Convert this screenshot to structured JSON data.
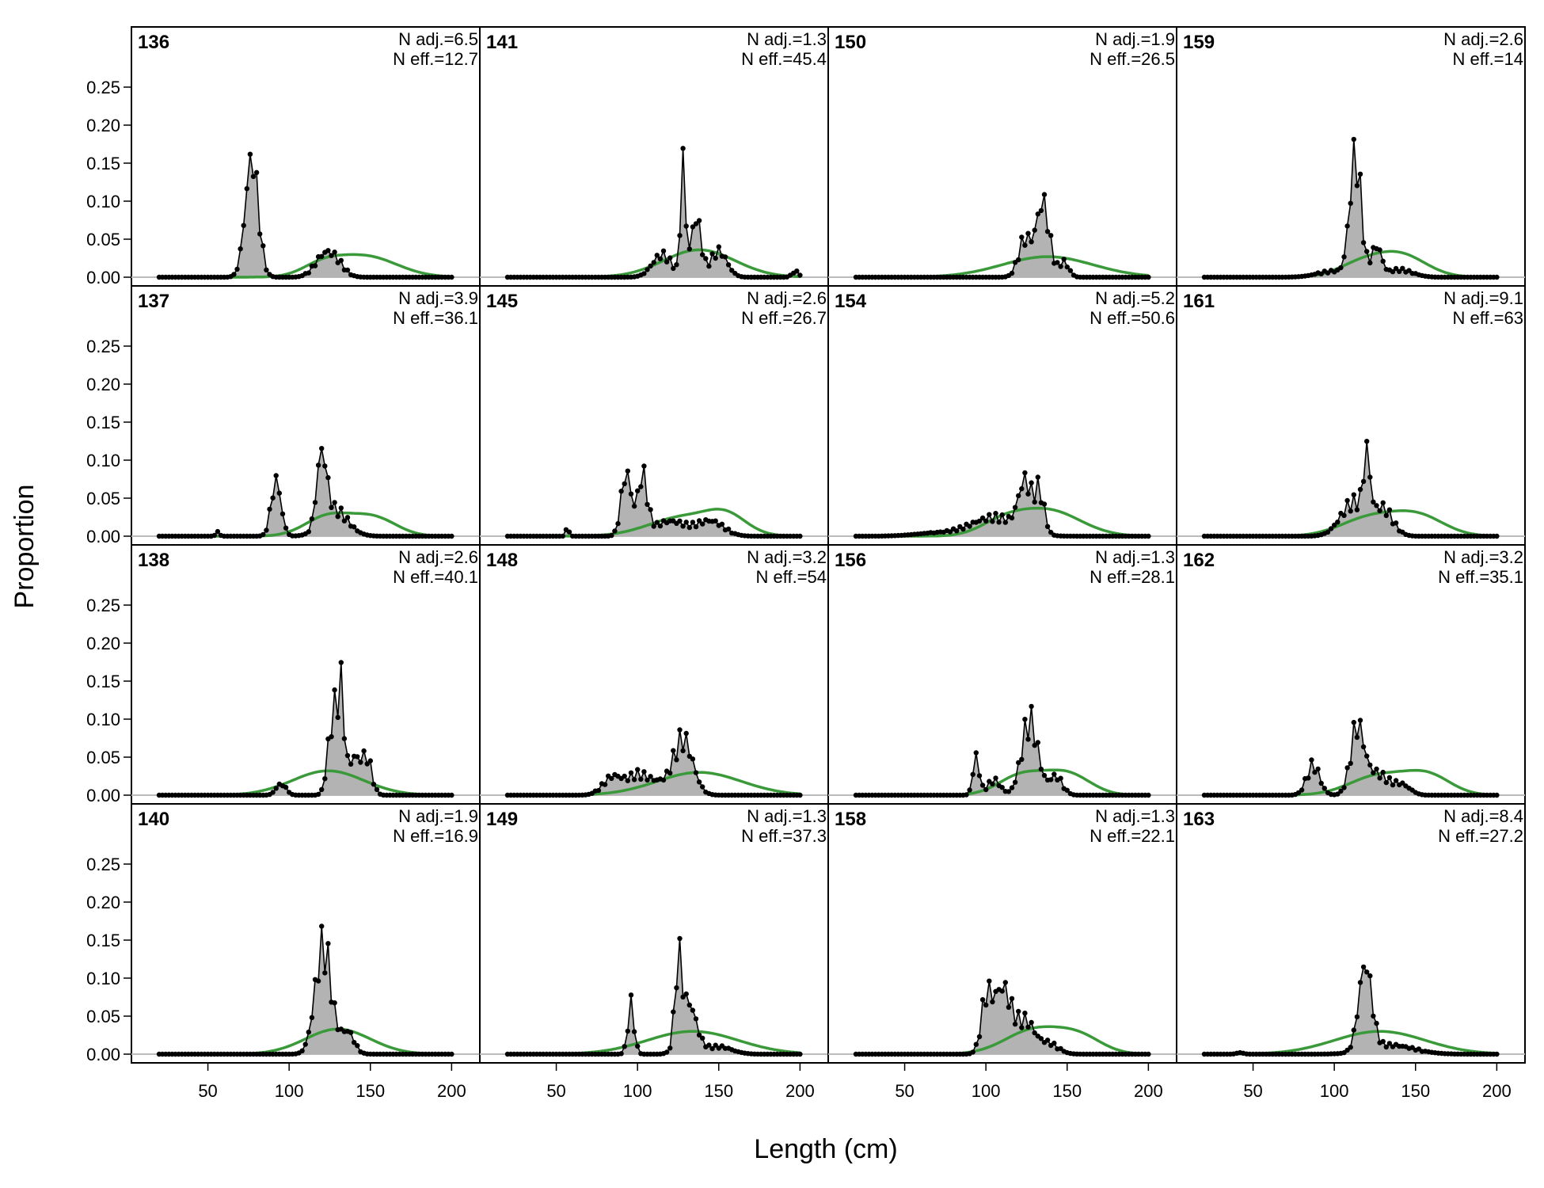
{
  "chart_data": {
    "type": "area",
    "xlabel": "Length (cm)",
    "ylabel": "Proportion",
    "xlim": [
      20,
      200
    ],
    "ylim": [
      0,
      0.25
    ],
    "x_ticks": [
      "50",
      "100",
      "150",
      "200"
    ],
    "y_ticks": [
      "0.00",
      "0.05",
      "0.10",
      "0.15",
      "0.20",
      "0.25"
    ],
    "observed_color": "#000000",
    "observed_fill": "#b3b3b3",
    "expected_color": "#3a9a3a",
    "baseline_color": "#bbbbbb",
    "columns": [
      [
        {
          "id": "136",
          "n_adj": "N adj.=6.5",
          "n_eff": "N eff.=12.7",
          "peaks": [
            [
              77,
              0.16,
              4
            ],
            [
              122,
              0.03,
              6
            ],
            [
              130,
              0.012,
              5
            ]
          ],
          "expected": [
            [
              146,
              0.028,
              20
            ],
            [
              120,
              0.012,
              12
            ]
          ]
        },
        {
          "id": "137",
          "n_adj": "N adj.=3.9",
          "n_eff": "N eff.=36.1",
          "peaks": [
            [
              92,
              0.075,
              3
            ],
            [
              120,
              0.095,
              3
            ],
            [
              128,
              0.035,
              8
            ],
            [
              56,
              0.008,
              1
            ]
          ],
          "expected": [
            [
              124,
              0.026,
              14
            ],
            [
              152,
              0.024,
              14
            ]
          ]
        },
        {
          "id": "138",
          "n_adj": "N adj.=2.6",
          "n_eff": "N eff.=40.1",
          "peaks": [
            [
              127,
              0.105,
              3
            ],
            [
              132,
              0.115,
              2
            ],
            [
              140,
              0.05,
              4
            ],
            [
              148,
              0.045,
              3
            ],
            [
              95,
              0.015,
              3
            ]
          ],
          "expected": [
            [
              124,
              0.032,
              22
            ]
          ]
        },
        {
          "id": "140",
          "n_adj": "N adj.=1.9",
          "n_eff": "N eff.=16.9",
          "peaks": [
            [
              121,
              0.145,
              5
            ],
            [
              136,
              0.03,
              4
            ]
          ],
          "expected": [
            [
              130,
              0.033,
              20
            ]
          ]
        }
      ],
      [
        {
          "id": "141",
          "n_adj": "N adj.=1.3",
          "n_eff": "N eff.=45.4",
          "peaks": [
            [
              128,
              0.15,
              1.5
            ],
            [
              136,
              0.08,
              3
            ],
            [
              115,
              0.03,
              6
            ],
            [
              150,
              0.035,
              5
            ],
            [
              197,
              0.008,
              2
            ]
          ],
          "expected": [
            [
              138,
              0.036,
              22
            ]
          ]
        },
        {
          "id": "145",
          "n_adj": "N adj.=2.6",
          "n_eff": "N eff.=26.7",
          "peaks": [
            [
              93,
              0.085,
              3
            ],
            [
              103,
              0.078,
              3
            ],
            [
              120,
              0.02,
              10
            ],
            [
              145,
              0.02,
              8
            ],
            [
              57,
              0.012,
              1
            ]
          ],
          "expected": [
            [
              130,
              0.026,
              22
            ],
            [
              155,
              0.02,
              12
            ]
          ]
        },
        {
          "id": "148",
          "n_adj": "N adj.=3.2",
          "n_eff": "N eff.=54",
          "peaks": [
            [
              128,
              0.075,
              6
            ],
            [
              85,
              0.025,
              6
            ],
            [
              100,
              0.025,
              6
            ],
            [
              112,
              0.015,
              6
            ]
          ],
          "expected": [
            [
              138,
              0.03,
              26
            ]
          ]
        },
        {
          "id": "149",
          "n_adj": "N adj.=1.3",
          "n_eff": "N eff.=37.3",
          "peaks": [
            [
              125,
              0.1,
              2
            ],
            [
              131,
              0.07,
              5
            ],
            [
              96,
              0.065,
              2
            ],
            [
              150,
              0.01,
              8
            ]
          ],
          "expected": [
            [
              134,
              0.03,
              28
            ]
          ]
        }
      ],
      [
        {
          "id": "150",
          "n_adj": "N adj.=1.9",
          "n_eff": "N eff.=26.5",
          "peaks": [
            [
              135,
              0.1,
              4
            ],
            [
              124,
              0.05,
              4
            ],
            [
              148,
              0.02,
              3
            ]
          ],
          "expected": [
            [
              138,
              0.027,
              28
            ]
          ]
        },
        {
          "id": "154",
          "n_adj": "N adj.=5.2",
          "n_eff": "N eff.=50.6",
          "peaks": [
            [
              124,
              0.065,
              4
            ],
            [
              133,
              0.055,
              3
            ],
            [
              105,
              0.025,
              14
            ],
            [
              70,
              0.004,
              14
            ]
          ],
          "expected": [
            [
              138,
              0.034,
              20
            ],
            [
              110,
              0.015,
              14
            ]
          ]
        },
        {
          "id": "156",
          "n_adj": "N adj.=1.3",
          "n_eff": "N eff.=28.1",
          "peaks": [
            [
              127,
              0.1,
              5
            ],
            [
              94,
              0.05,
              2
            ],
            [
              143,
              0.025,
              4
            ],
            [
              105,
              0.02,
              4
            ]
          ],
          "expected": [
            [
              122,
              0.026,
              14
            ],
            [
              150,
              0.028,
              14
            ]
          ]
        },
        {
          "id": "158",
          "n_adj": "N adj.=1.3",
          "n_eff": "N eff.=22.1",
          "peaks": [
            [
              110,
              0.09,
              6
            ],
            [
              100,
              0.06,
              3
            ],
            [
              125,
              0.04,
              5
            ],
            [
              138,
              0.015,
              6
            ]
          ],
          "expected": [
            [
              130,
              0.032,
              18
            ],
            [
              158,
              0.02,
              14
            ]
          ]
        }
      ],
      [
        {
          "id": "159",
          "n_adj": "N adj.=2.6",
          "n_eff": "N eff.=14",
          "peaks": [
            [
              113,
              0.16,
              3.5
            ],
            [
              126,
              0.04,
              3
            ],
            [
              100,
              0.008,
              10
            ],
            [
              140,
              0.01,
              8
            ]
          ],
          "expected": [
            [
              140,
              0.03,
              16
            ],
            [
              115,
              0.015,
              14
            ]
          ]
        },
        {
          "id": "161",
          "n_adj": "N adj.=9.1",
          "n_eff": "N eff.=63",
          "peaks": [
            [
              120,
              0.08,
              2
            ],
            [
              112,
              0.045,
              8
            ],
            [
              130,
              0.035,
              6
            ]
          ],
          "expected": [
            [
              122,
              0.024,
              18
            ],
            [
              152,
              0.025,
              16
            ]
          ]
        },
        {
          "id": "162",
          "n_adj": "N adj.=3.2",
          "n_eff": "N eff.=35.1",
          "peaks": [
            [
              114,
              0.083,
              4
            ],
            [
              87,
              0.04,
              4
            ],
            [
              125,
              0.03,
              8
            ],
            [
              142,
              0.012,
              5
            ]
          ],
          "expected": [
            [
              128,
              0.026,
              18
            ],
            [
              158,
              0.024,
              14
            ]
          ]
        },
        {
          "id": "163",
          "n_adj": "N adj.=8.4",
          "n_eff": "N eff.=27.2",
          "peaks": [
            [
              119,
              0.115,
              4
            ],
            [
              135,
              0.012,
              14
            ],
            [
              42,
              0.002,
              2
            ]
          ],
          "expected": [
            [
              128,
              0.03,
              28
            ]
          ]
        }
      ]
    ]
  }
}
